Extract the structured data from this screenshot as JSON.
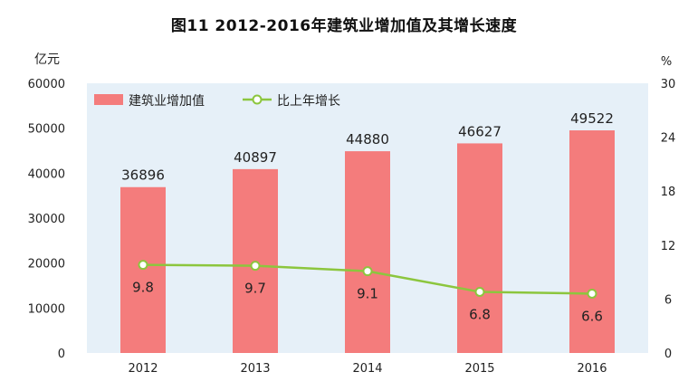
{
  "chart_data": {
    "type": "bar",
    "title": "图11    2012-2016年建筑业增加值及其增长速度",
    "categories": [
      "2012",
      "2013",
      "2014",
      "2015",
      "2016"
    ],
    "series": [
      {
        "name": "建筑业增加值",
        "type": "bar",
        "axis": "left",
        "values": [
          36896,
          40897,
          44880,
          46627,
          49522
        ],
        "color": "#f47c7c"
      },
      {
        "name": "比上年增长",
        "type": "line",
        "axis": "right",
        "values": [
          9.8,
          9.7,
          9.1,
          6.8,
          6.6
        ],
        "color": "#8cc63e"
      }
    ],
    "left_axis": {
      "unit": "亿元",
      "range": [
        0,
        60000
      ],
      "ticks": [
        "0",
        "10000",
        "20000",
        "30000",
        "40000",
        "50000",
        "60000"
      ]
    },
    "right_axis": {
      "unit": "%",
      "range": [
        0,
        30
      ],
      "ticks": [
        "0",
        "6",
        "12",
        "18",
        "24",
        "30"
      ]
    },
    "plot_background": "#e6f0f8",
    "grid": false,
    "legend_position": "top-left"
  }
}
